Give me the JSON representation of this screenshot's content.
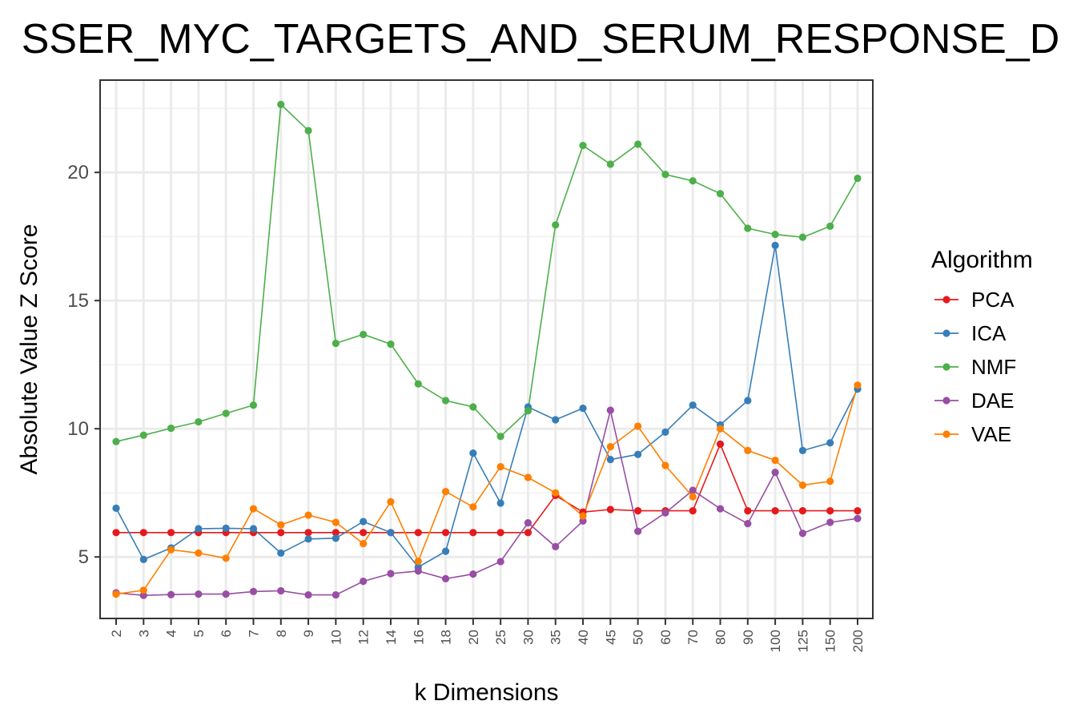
{
  "chart_data": {
    "type": "line",
    "title": "SSER_MYC_TARGETS_AND_SERUM_RESPONSE_D",
    "xlabel": "k Dimensions",
    "ylabel": "Absolute Value Z Score",
    "categories": [
      "2",
      "3",
      "4",
      "5",
      "6",
      "7",
      "8",
      "9",
      "10",
      "12",
      "14",
      "16",
      "18",
      "20",
      "25",
      "30",
      "35",
      "40",
      "45",
      "50",
      "60",
      "70",
      "80",
      "90",
      "100",
      "125",
      "150",
      "200"
    ],
    "yticks": [
      5,
      10,
      15,
      20
    ],
    "ylim": [
      2.6,
      23.6
    ],
    "grid": true,
    "legend": {
      "title": "Algorithm",
      "position": "right"
    },
    "series": [
      {
        "name": "PCA",
        "color": "#E41A1C",
        "values": [
          5.95,
          5.95,
          5.95,
          5.95,
          5.95,
          5.95,
          5.95,
          5.95,
          5.95,
          5.95,
          5.95,
          5.95,
          5.95,
          5.95,
          5.95,
          5.95,
          7.4,
          6.75,
          6.85,
          6.8,
          6.8,
          6.8,
          9.4,
          6.8,
          6.8,
          6.8,
          6.8,
          6.8
        ]
      },
      {
        "name": "ICA",
        "color": "#377EB8",
        "values": [
          6.9,
          4.9,
          5.35,
          6.1,
          6.12,
          6.1,
          5.15,
          5.7,
          5.73,
          6.38,
          5.95,
          4.6,
          5.22,
          9.05,
          7.1,
          10.85,
          10.35,
          10.8,
          8.8,
          9.0,
          9.87,
          10.92,
          10.15,
          11.1,
          17.15,
          9.15,
          9.45,
          11.55
        ]
      },
      {
        "name": "NMF",
        "color": "#4DAF4A",
        "values": [
          9.5,
          9.75,
          10.02,
          10.27,
          10.6,
          10.92,
          22.65,
          21.63,
          13.33,
          13.68,
          13.3,
          11.75,
          11.1,
          10.85,
          9.7,
          10.7,
          17.95,
          21.05,
          20.32,
          21.1,
          19.92,
          19.67,
          19.17,
          17.82,
          17.58,
          17.47,
          17.9,
          19.77
        ]
      },
      {
        "name": "DAE",
        "color": "#984EA3",
        "values": [
          3.6,
          3.5,
          3.53,
          3.55,
          3.55,
          3.65,
          3.68,
          3.52,
          3.52,
          4.05,
          4.35,
          4.45,
          4.15,
          4.33,
          4.82,
          6.33,
          5.4,
          6.4,
          10.72,
          6.0,
          6.72,
          7.6,
          6.88,
          6.3,
          8.3,
          5.92,
          6.35,
          6.5
        ]
      },
      {
        "name": "VAE",
        "color": "#FF7F00",
        "values": [
          3.55,
          3.7,
          5.28,
          5.15,
          4.95,
          6.88,
          6.25,
          6.63,
          6.35,
          5.52,
          7.15,
          4.83,
          7.55,
          6.95,
          8.52,
          8.1,
          7.5,
          6.6,
          9.3,
          10.1,
          8.57,
          7.35,
          10.0,
          9.15,
          8.77,
          7.8,
          7.95,
          11.7
        ]
      }
    ]
  }
}
